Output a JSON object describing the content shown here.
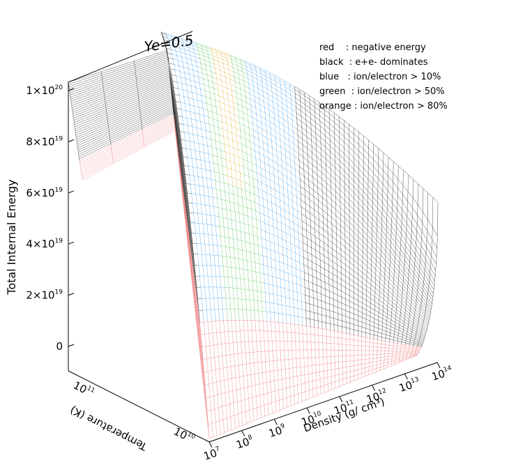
{
  "chart_data": {
    "type": "surface3d",
    "title": "Ye=0.5",
    "zlabel": "Total Internal Energy",
    "xlabel": "Density (g/ cm³)",
    "ylabel": "Temperature (K)",
    "z_ticks": [
      {
        "value": 1e+20,
        "base": "1×10",
        "exp": "20"
      },
      {
        "value": 8e+19,
        "base": "8×10",
        "exp": "19"
      },
      {
        "value": 6e+19,
        "base": "6×10",
        "exp": "19"
      },
      {
        "value": 4e+19,
        "base": "4×10",
        "exp": "19"
      },
      {
        "value": 2e+19,
        "base": "2×10",
        "exp": "19"
      },
      {
        "value": 0,
        "base": "0",
        "exp": ""
      }
    ],
    "density_ticks": [
      {
        "base": "10",
        "exp": "7"
      },
      {
        "base": "10",
        "exp": "8"
      },
      {
        "base": "10",
        "exp": "9"
      },
      {
        "base": "10",
        "exp": "10"
      },
      {
        "base": "10",
        "exp": "11"
      },
      {
        "base": "10",
        "exp": "12"
      },
      {
        "base": "10",
        "exp": "13"
      },
      {
        "base": "10",
        "exp": "14"
      }
    ],
    "temperature_ticks": [
      {
        "base": "10",
        "exp": "10"
      },
      {
        "base": "10",
        "exp": "11"
      }
    ],
    "legend": [
      {
        "text": "red    : negative energy",
        "color": "#f08080"
      },
      {
        "text": "black  : e+e- dominates",
        "color": "#333333"
      },
      {
        "text": "blue   : ion/electron > 10%",
        "color": "#55aaee"
      },
      {
        "text": "green  : ion/electron > 50%",
        "color": "#66cc66"
      },
      {
        "text": "orange : ion/electron > 80%",
        "color": "#e8b84a"
      }
    ],
    "legend_placement": "top-right",
    "grid": false
  }
}
